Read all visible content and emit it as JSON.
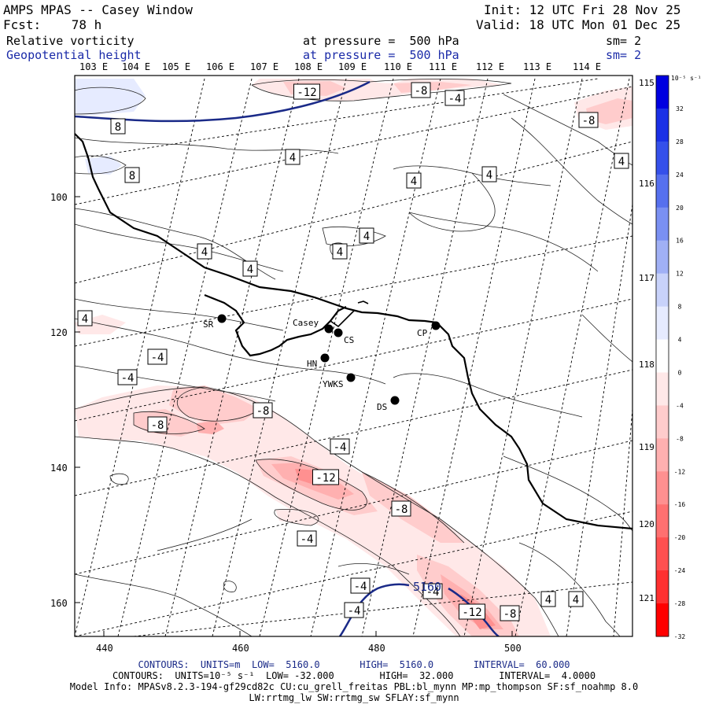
{
  "header": {
    "title": "AMPS MPAS -- Casey Window",
    "fcst": "Fcst:    78 h",
    "init": "Init: 12 UTC Fri 28 Nov 25",
    "valid": "Valid: 18 UTC Mon 01 Dec 25",
    "field1": "Relative vorticity",
    "field1_level": "at pressure =  500 hPa",
    "field1_sm": "sm= 2",
    "field2": "Geopotential height",
    "field2_level": "at pressure =  500 hPa",
    "field2_sm": "sm= 2"
  },
  "top_lon_labels": [
    "103 E",
    "104 E",
    "105 E",
    "106 E",
    "107 E",
    "108 E",
    "109 E",
    "110 E",
    "111 E",
    "112 E",
    "113 E",
    "114 E"
  ],
  "right_lon_labels": [
    "115 E",
    "116 E",
    "117 E",
    "118 E",
    "119 E",
    "120 E",
    "121 E"
  ],
  "x_axis_ticks": [
    "440",
    "460",
    "480",
    "500"
  ],
  "y_axis_ticks": [
    "100",
    "120",
    "140",
    "160"
  ],
  "stations": [
    {
      "label": "SR"
    },
    {
      "label": "Casey"
    },
    {
      "label": "CS"
    },
    {
      "label": "HN"
    },
    {
      "label": "CP"
    },
    {
      "label": "YWKS"
    },
    {
      "label": "DS"
    }
  ],
  "contour_labels": [
    "-12",
    "-8",
    "-4",
    "8",
    "4",
    "8",
    "4",
    "4",
    "4",
    "4",
    "4",
    "4",
    "4",
    "4",
    "-4",
    "-4",
    "-8",
    "-8",
    "-4",
    "-12",
    "-8",
    "-4",
    "-4",
    "-4",
    "4",
    "4",
    "-8",
    "-12",
    "-4",
    "-8",
    "5160"
  ],
  "colorbar": {
    "units": "10⁻⁵ s⁻¹",
    "ticks": [
      "32",
      "28",
      "24",
      "20",
      "16",
      "12",
      "8",
      "4",
      "0",
      "-4",
      "-8",
      "-12",
      "-16",
      "-20",
      "-24",
      "-28",
      "-32"
    ],
    "colors": [
      "#0000e0",
      "#1a30e6",
      "#3550ea",
      "#5670ee",
      "#7a90f2",
      "#a0b0f5",
      "#c8d2fa",
      "#e6ebff",
      "#ffffff",
      "#ffe8e8",
      "#ffcccc",
      "#ffb0b0",
      "#ff9090",
      "#ff7070",
      "#ff5050",
      "#ff3030",
      "#ff0000"
    ]
  },
  "footer": {
    "line1": "CONTOURS:  UNITS=m  LOW=  5160.0       HIGH=  5160.0       INTERVAL=  60.000",
    "line2": "CONTOURS:  UNITS=10⁻⁵ s⁻¹  LOW= -32.000        HIGH=  32.000        INTERVAL=  4.0000",
    "line3": "Model Info: MPASv8.2.3-194-gf29cd82c CU:cu_grell_freitas PBL:bl_mynn MP:mp_thompson SF:sf_noahmp 8.0",
    "line4": "LW:rrtmg_lw SW:rrtmg_sw SFLAY:sf_mynn"
  }
}
